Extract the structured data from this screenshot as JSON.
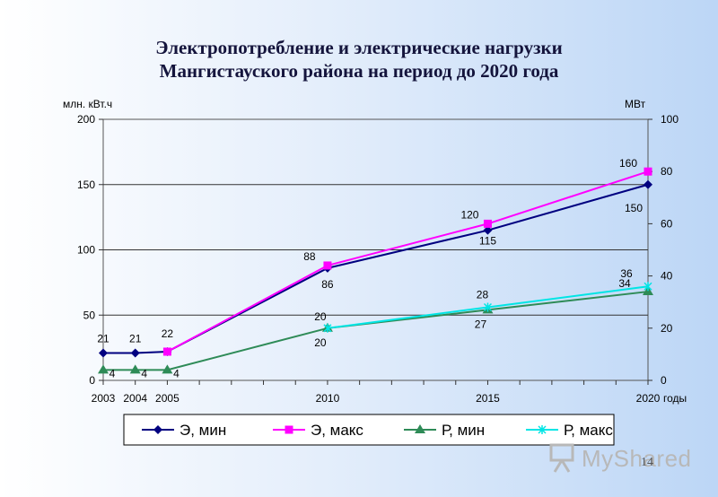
{
  "title": {
    "line1": "Электропотребление и электрические нагрузки",
    "line2": "Мангистауского района на период до 2020 года"
  },
  "watermark": {
    "text": "MyShared"
  },
  "page_number": "14",
  "chart_data": {
    "type": "line",
    "x": [
      2003,
      2004,
      2005,
      2010,
      2015,
      2020
    ],
    "x_tick_labels": [
      "2003",
      "2004",
      "2005",
      "2010",
      "2015",
      "2020"
    ],
    "xlabel": "годы",
    "ylabel_left": "млн. кВт.ч",
    "ylabel_right": "МВт",
    "ylim_left": [
      0,
      200
    ],
    "ylim_right": [
      0,
      100
    ],
    "yticks_left": [
      "0",
      "50",
      "100",
      "150",
      "200"
    ],
    "yticks_right": [
      "0",
      "20",
      "40",
      "60",
      "80",
      "100"
    ],
    "grid": true,
    "legend_position": "bottom",
    "series": [
      {
        "name": "Э, мин",
        "axis": "left",
        "color": "#000080",
        "marker": "diamond",
        "values": [
          21,
          21,
          22,
          86,
          115,
          150
        ],
        "labels": [
          "21",
          "21",
          "",
          "86",
          "115",
          "150"
        ]
      },
      {
        "name": "Э, макс",
        "axis": "left",
        "color": "#ff00ff",
        "marker": "square",
        "values": [
          null,
          null,
          22,
          88,
          120,
          160
        ],
        "labels": [
          "",
          "",
          "22",
          "88",
          "120",
          "160"
        ]
      },
      {
        "name": "Р, мин",
        "axis": "right",
        "color": "#2e8b57",
        "marker": "triangle",
        "values": [
          4,
          4,
          4,
          20,
          27,
          34
        ],
        "labels": [
          "4",
          "4",
          "4",
          "20",
          "27",
          "34"
        ]
      },
      {
        "name": "Р, макс",
        "axis": "right",
        "color": "#00e5e5",
        "marker": "x",
        "values": [
          null,
          null,
          null,
          20,
          28,
          36
        ],
        "labels": [
          "",
          "",
          "",
          "20",
          "28",
          "36"
        ]
      }
    ]
  }
}
